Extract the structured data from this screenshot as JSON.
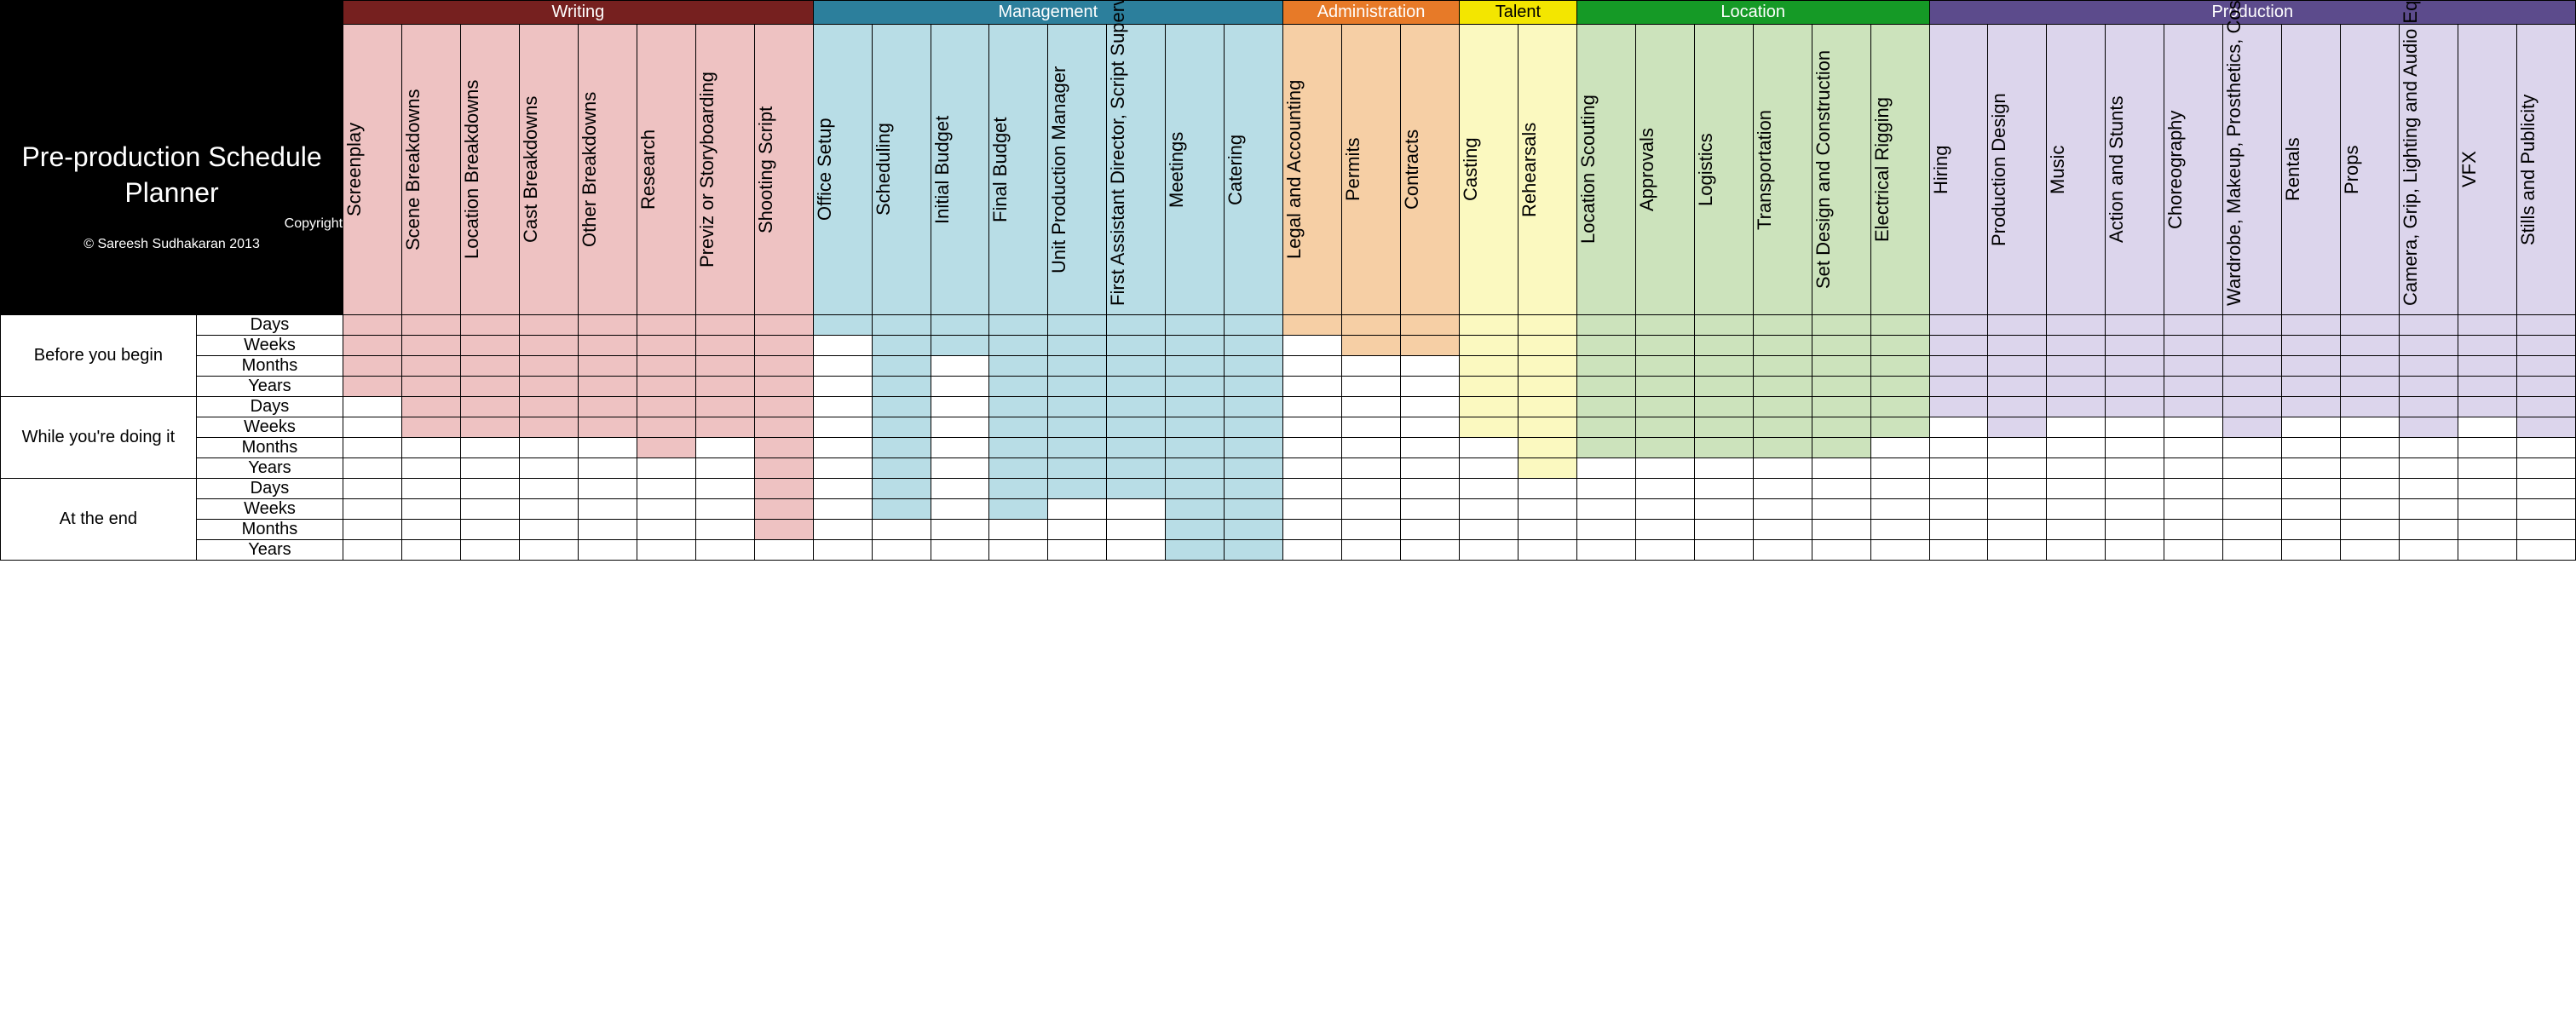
{
  "title": {
    "main": "Pre-production Schedule Planner",
    "copyright_label": "Copyright",
    "copyright_text": "© Sareesh    Sudhakaran 2013"
  },
  "groups": [
    {
      "name": "Writing",
      "header_bg": "#76201f",
      "col_bg": "#eec2c2",
      "tasks": [
        "Screenplay",
        "Scene Breakdowns",
        "Location Breakdowns",
        "Cast Breakdowns",
        "Other Breakdowns",
        "Research",
        "Previz or Storyboarding",
        "Shooting Script"
      ]
    },
    {
      "name": "Management",
      "header_bg": "#2c7f9c",
      "col_bg": "#b8dde6",
      "tasks": [
        "Office Setup",
        "Scheduling",
        "Initial Budget",
        "Final Budget",
        "Unit Production Manager",
        "First Assistant Director, Script Supervisor",
        "Meetings",
        "Catering"
      ]
    },
    {
      "name": "Administration",
      "header_bg": "#e77a28",
      "col_bg": "#f6cfa5",
      "tasks": [
        "Legal and Accounting",
        "Permits",
        "Contracts"
      ]
    },
    {
      "name": "Talent",
      "header_bg": "#f3e600",
      "col_bg": "#fbf9c0",
      "header_fg": "#000",
      "tasks": [
        "Casting",
        "Rehearsals"
      ]
    },
    {
      "name": "Location",
      "header_bg": "#159a26",
      "col_bg": "#cce3bc",
      "tasks": [
        "Location Scouting",
        "Approvals",
        "Logistics",
        "Transportation",
        "Set Design and Construction",
        "Electrical Rigging"
      ]
    },
    {
      "name": "Production",
      "header_bg": "#5c4b8c",
      "col_bg": "#dcd5ec",
      "tasks": [
        "Hiring",
        "Production Design",
        "Music",
        "Action and Stunts",
        "Choreography",
        "Wardrobe, Makeup, Prosthetics, Costumes",
        "Rentals",
        "Props",
        "Camera, Grip, Lighting and Audio Equipment",
        "VFX",
        "Stills and Publicity"
      ]
    }
  ],
  "phases": [
    {
      "name": "Before you begin",
      "periods": [
        "Days",
        "Weeks",
        "Months",
        "Years"
      ]
    },
    {
      "name": "While you're doing it",
      "periods": [
        "Days",
        "Weeks",
        "Months",
        "Years"
      ]
    },
    {
      "name": "At the end",
      "periods": [
        "Days",
        "Weeks",
        "Months",
        "Years"
      ]
    }
  ],
  "filled": {
    "Before you begin": {
      "Days": [
        "Screenplay",
        "Scene Breakdowns",
        "Location Breakdowns",
        "Cast Breakdowns",
        "Other Breakdowns",
        "Research",
        "Previz or Storyboarding",
        "Shooting Script",
        "Office Setup",
        "Scheduling",
        "Initial Budget",
        "Final Budget",
        "Unit Production Manager",
        "First Assistant Director, Script Supervisor",
        "Meetings",
        "Catering",
        "Legal and Accounting",
        "Permits",
        "Contracts",
        "Casting",
        "Rehearsals",
        "Location Scouting",
        "Approvals",
        "Logistics",
        "Transportation",
        "Set Design and Construction",
        "Electrical Rigging",
        "Hiring",
        "Production Design",
        "Music",
        "Action and Stunts",
        "Choreography",
        "Wardrobe, Makeup, Prosthetics, Costumes",
        "Rentals",
        "Props",
        "Camera, Grip, Lighting and Audio Equipment",
        "VFX",
        "Stills and Publicity"
      ],
      "Weeks": [
        "Screenplay",
        "Scene Breakdowns",
        "Location Breakdowns",
        "Cast Breakdowns",
        "Other Breakdowns",
        "Research",
        "Previz or Storyboarding",
        "Shooting Script",
        "Scheduling",
        "Initial Budget",
        "Final Budget",
        "Unit Production Manager",
        "First Assistant Director, Script Supervisor",
        "Meetings",
        "Catering",
        "Permits",
        "Contracts",
        "Casting",
        "Rehearsals",
        "Location Scouting",
        "Approvals",
        "Logistics",
        "Transportation",
        "Set Design and Construction",
        "Electrical Rigging",
        "Hiring",
        "Production Design",
        "Music",
        "Action and Stunts",
        "Choreography",
        "Wardrobe, Makeup, Prosthetics, Costumes",
        "Rentals",
        "Props",
        "Camera, Grip, Lighting and Audio Equipment",
        "VFX",
        "Stills and Publicity"
      ],
      "Months": [
        "Screenplay",
        "Scene Breakdowns",
        "Location Breakdowns",
        "Cast Breakdowns",
        "Other Breakdowns",
        "Research",
        "Previz or Storyboarding",
        "Shooting Script",
        "Scheduling",
        "Final Budget",
        "Unit Production Manager",
        "First Assistant Director, Script Supervisor",
        "Meetings",
        "Catering",
        "Casting",
        "Rehearsals",
        "Location Scouting",
        "Approvals",
        "Logistics",
        "Transportation",
        "Set Design and Construction",
        "Electrical Rigging",
        "Hiring",
        "Production Design",
        "Music",
        "Action and Stunts",
        "Choreography",
        "Wardrobe, Makeup, Prosthetics, Costumes",
        "Rentals",
        "Props",
        "Camera, Grip, Lighting and Audio Equipment",
        "VFX",
        "Stills and Publicity"
      ],
      "Years": [
        "Screenplay",
        "Scene Breakdowns",
        "Location Breakdowns",
        "Cast Breakdowns",
        "Other Breakdowns",
        "Research",
        "Previz or Storyboarding",
        "Shooting Script",
        "Scheduling",
        "Final Budget",
        "Unit Production Manager",
        "First Assistant Director, Script Supervisor",
        "Meetings",
        "Catering",
        "Casting",
        "Rehearsals",
        "Location Scouting",
        "Approvals",
        "Logistics",
        "Transportation",
        "Set Design and Construction",
        "Electrical Rigging",
        "Hiring",
        "Production Design",
        "Music",
        "Action and Stunts",
        "Choreography",
        "Wardrobe, Makeup, Prosthetics, Costumes",
        "Rentals",
        "Props",
        "Camera, Grip, Lighting and Audio Equipment",
        "VFX",
        "Stills and Publicity"
      ]
    },
    "While you're doing it": {
      "Days": [
        "Scene Breakdowns",
        "Location Breakdowns",
        "Cast Breakdowns",
        "Other Breakdowns",
        "Research",
        "Previz or Storyboarding",
        "Shooting Script",
        "Scheduling",
        "Final Budget",
        "Unit Production Manager",
        "First Assistant Director, Script Supervisor",
        "Meetings",
        "Catering",
        "Casting",
        "Rehearsals",
        "Location Scouting",
        "Approvals",
        "Logistics",
        "Transportation",
        "Set Design and Construction",
        "Electrical Rigging",
        "Hiring",
        "Production Design",
        "Music",
        "Action and Stunts",
        "Choreography",
        "Wardrobe, Makeup, Prosthetics, Costumes",
        "Rentals",
        "Props",
        "Camera, Grip, Lighting and Audio Equipment",
        "VFX",
        "Stills and Publicity"
      ],
      "Weeks": [
        "Scene Breakdowns",
        "Location Breakdowns",
        "Cast Breakdowns",
        "Other Breakdowns",
        "Research",
        "Previz or Storyboarding",
        "Shooting Script",
        "Scheduling",
        "Final Budget",
        "Unit Production Manager",
        "First Assistant Director, Script Supervisor",
        "Meetings",
        "Catering",
        "Casting",
        "Rehearsals",
        "Location Scouting",
        "Approvals",
        "Logistics",
        "Transportation",
        "Set Design and Construction",
        "Electrical Rigging",
        "Production Design",
        "Wardrobe, Makeup, Prosthetics, Costumes",
        "Camera, Grip, Lighting and Audio Equipment",
        "Stills and Publicity"
      ],
      "Months": [
        "Research",
        "Shooting Script",
        "Scheduling",
        "Final Budget",
        "Unit Production Manager",
        "First Assistant Director, Script Supervisor",
        "Meetings",
        "Catering",
        "Rehearsals",
        "Location Scouting",
        "Approvals",
        "Logistics",
        "Transportation",
        "Set Design and Construction"
      ],
      "Years": [
        "Shooting Script",
        "Scheduling",
        "Final Budget",
        "Unit Production Manager",
        "First Assistant Director, Script Supervisor",
        "Meetings",
        "Catering",
        "Rehearsals"
      ]
    },
    "At the end": {
      "Days": [
        "Shooting Script",
        "Scheduling",
        "Final Budget",
        "Unit Production Manager",
        "First Assistant Director, Script Supervisor",
        "Meetings",
        "Catering"
      ],
      "Weeks": [
        "Shooting Script",
        "Scheduling",
        "Final Budget",
        "Meetings",
        "Catering"
      ],
      "Months": [
        "Shooting Script",
        "Meetings",
        "Catering"
      ],
      "Years": [
        "Meetings",
        "Catering"
      ]
    }
  }
}
